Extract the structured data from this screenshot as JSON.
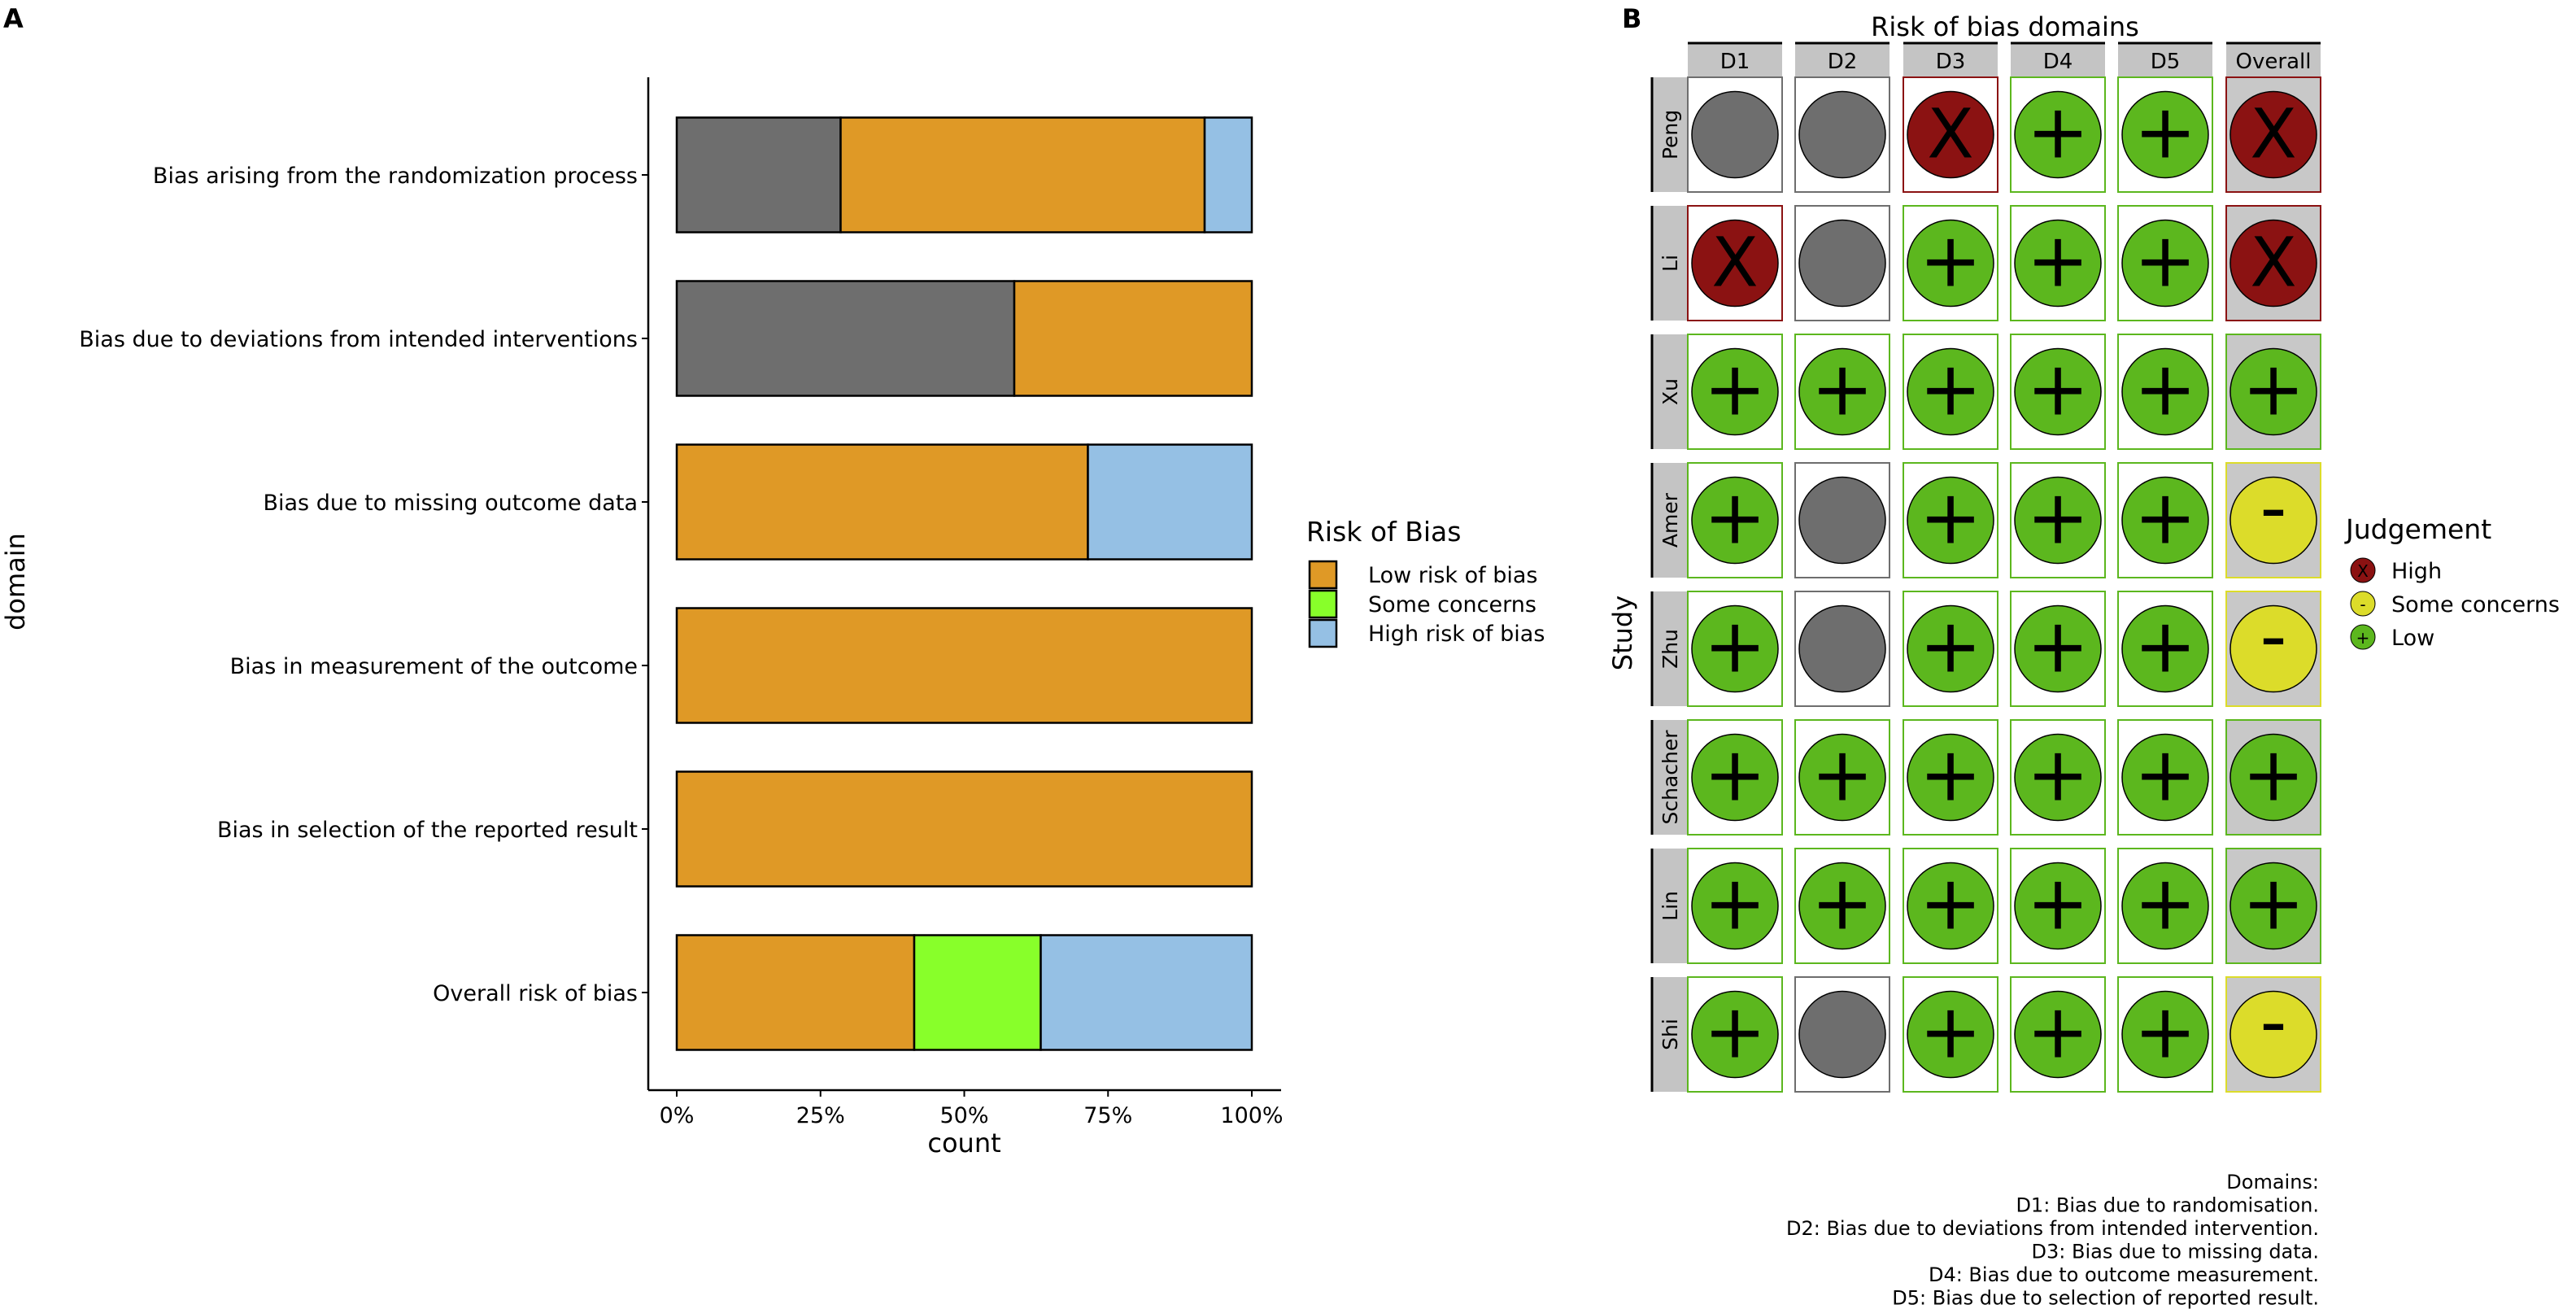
{
  "chart_data": [
    {
      "panel_label": "A",
      "type": "bar",
      "orientation": "horizontal",
      "stacked": true,
      "xlabel": "count",
      "ylabel": "domain",
      "xlim": [
        0,
        100
      ],
      "xticks": [
        "0%",
        "25%",
        "50%",
        "75%",
        "100%"
      ],
      "grid": false,
      "categories": [
        "Bias arising from the randomization process",
        "Bias due to deviations from intended interventions",
        "Bias due to missing outcome data",
        "Bias in measurement of the outcome",
        "Bias in selection of the reported result",
        "Overall risk of bias"
      ],
      "series": [
        {
          "color": "#6e6e6e",
          "values": [
            28.5,
            58.7,
            0,
            0,
            0,
            0
          ]
        },
        {
          "name": "Low risk of bias",
          "color": "#df9926",
          "values": [
            63.3,
            41.3,
            71.5,
            100,
            100,
            41.3
          ]
        },
        {
          "name": "Some concerns",
          "color": "#88ff2a",
          "values": [
            0,
            0,
            0,
            0,
            0,
            22.0
          ]
        },
        {
          "name": "High risk of bias",
          "color": "#95c0e4",
          "values": [
            8.2,
            0,
            28.5,
            0,
            0,
            36.7
          ]
        }
      ],
      "legend": {
        "title": "Risk of Bias",
        "placement": "right",
        "entries": [
          "Low risk of bias",
          "Some concerns",
          "High risk of bias"
        ]
      }
    },
    {
      "panel_label": "B",
      "type": "heatmap",
      "title": "Risk of bias domains",
      "ylabel": "Study",
      "columns": [
        "D1",
        "D2",
        "D3",
        "D4",
        "D5",
        "Overall"
      ],
      "rows": [
        {
          "study": "Peng",
          "judgements": [
            "NI",
            "NI",
            "High",
            "Low",
            "Low",
            "High"
          ]
        },
        {
          "study": "Li",
          "judgements": [
            "High",
            "NI",
            "Low",
            "Low",
            "Low",
            "High"
          ]
        },
        {
          "study": "Xu",
          "judgements": [
            "Low",
            "Low",
            "Low",
            "Low",
            "Low",
            "Low"
          ]
        },
        {
          "study": "Amer",
          "judgements": [
            "Low",
            "NI",
            "Low",
            "Low",
            "Low",
            "Some concerns"
          ]
        },
        {
          "study": "Zhu",
          "judgements": [
            "Low",
            "NI",
            "Low",
            "Low",
            "Low",
            "Some concerns"
          ]
        },
        {
          "study": "Schacher",
          "judgements": [
            "Low",
            "Low",
            "Low",
            "Low",
            "Low",
            "Low"
          ]
        },
        {
          "study": "Lin",
          "judgements": [
            "Low",
            "Low",
            "Low",
            "Low",
            "Low",
            "Low"
          ]
        },
        {
          "study": "Shi",
          "judgements": [
            "Low",
            "NI",
            "Low",
            "Low",
            "Low",
            "Some concerns"
          ]
        }
      ],
      "judgement_styles": {
        "High": {
          "color": "#8b1212",
          "symbol": "X"
        },
        "Some concerns": {
          "color": "#dcdc2a",
          "symbol": "-"
        },
        "Low": {
          "color": "#5cb71e",
          "symbol": "+"
        },
        "NI": {
          "color": "#6e6e6e",
          "symbol": ""
        }
      },
      "legend": {
        "title": "Judgement",
        "placement": "right",
        "entries": [
          {
            "label": "High",
            "symbol": "X",
            "color": "#8b1212"
          },
          {
            "label": "Some concerns",
            "symbol": "-",
            "color": "#dcdc2a"
          },
          {
            "label": "Low",
            "symbol": "+",
            "color": "#5cb71e"
          }
        ]
      },
      "footnote": [
        "Domains:",
        "D1: Bias due to randomisation.",
        "D2: Bias due to deviations from intended intervention.",
        "D3: Bias due to missing data.",
        "D4: Bias due to outcome measurement.",
        "D5: Bias due to selection of reported result."
      ]
    }
  ]
}
